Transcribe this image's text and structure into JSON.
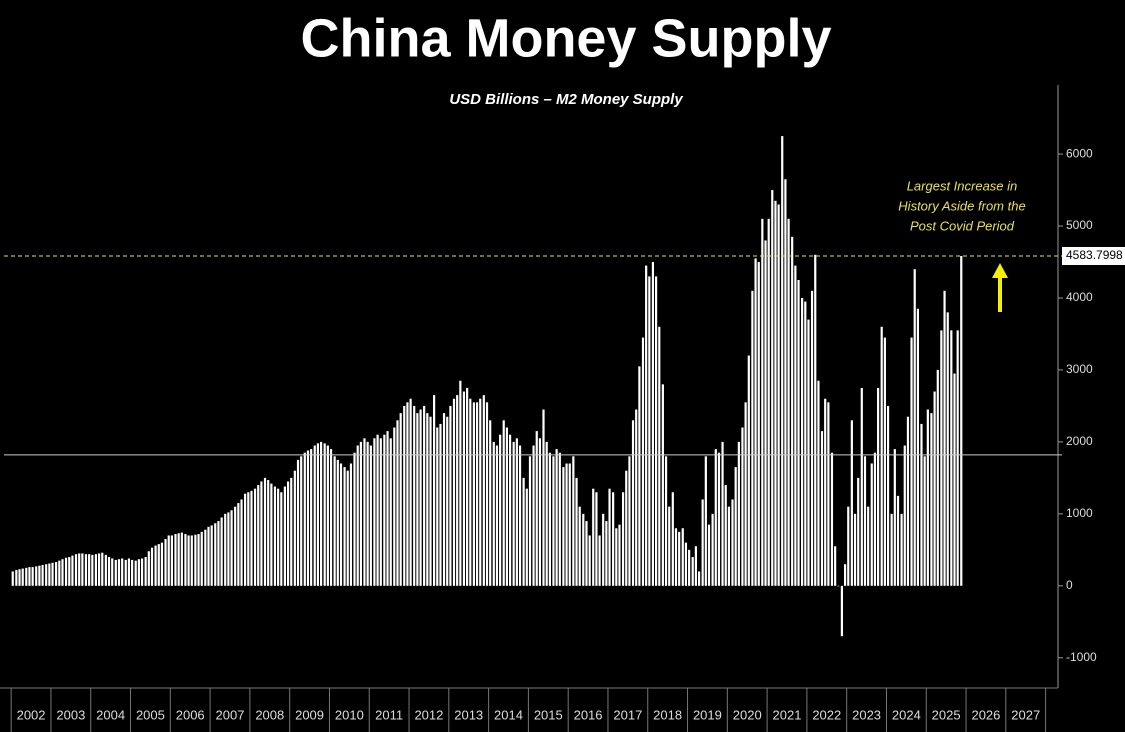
{
  "chart_data": {
    "type": "bar",
    "title": "China Money Supply",
    "subtitle": "USD Billions – M2 Money Supply",
    "annotation": [
      "Largest Increase in",
      "History Aside from the",
      "Post Covid Period"
    ],
    "color": "#ffffff",
    "axis_side": "right",
    "xlim": [
      2001.82,
      2028.06
    ],
    "xticks": [
      {
        "value": 2002.5,
        "label": "2002"
      },
      {
        "value": 2003.5,
        "label": "2003"
      },
      {
        "value": 2004.5,
        "label": "2004"
      },
      {
        "value": 2005.5,
        "label": "2005"
      },
      {
        "value": 2006.5,
        "label": "2006"
      },
      {
        "value": 2007.5,
        "label": "2007"
      },
      {
        "value": 2008.5,
        "label": "2008"
      },
      {
        "value": 2009.5,
        "label": "2009"
      },
      {
        "value": 2010.5,
        "label": "2010"
      },
      {
        "value": 2011.5,
        "label": "2011"
      },
      {
        "value": 2012.5,
        "label": "2012"
      },
      {
        "value": 2013.5,
        "label": "2013"
      },
      {
        "value": 2014.5,
        "label": "2014"
      },
      {
        "value": 2015.5,
        "label": "2015"
      },
      {
        "value": 2016.5,
        "label": "2016"
      },
      {
        "value": 2017.5,
        "label": "2017"
      },
      {
        "value": 2018.5,
        "label": "2018"
      },
      {
        "value": 2019.5,
        "label": "2019"
      },
      {
        "value": 2020.5,
        "label": "2020"
      },
      {
        "value": 2021.5,
        "label": "2021"
      },
      {
        "value": 2022.5,
        "label": "2022"
      },
      {
        "value": 2023.5,
        "label": "2023"
      },
      {
        "value": 2024.5,
        "label": "2024"
      },
      {
        "value": 2025.5,
        "label": "2025"
      },
      {
        "value": 2026.5,
        "label": "2026"
      },
      {
        "value": 2027.5,
        "label": "2027"
      }
    ],
    "ylim": [
      -1420,
      6960
    ],
    "yticks": [
      -1000,
      0,
      1000,
      2000,
      3000,
      4000,
      5000,
      6000
    ],
    "reference_lines": [
      {
        "value": 1820,
        "color": "#cccccc",
        "dashed": false
      },
      {
        "value": 4583.7998,
        "color": "#e8e05a",
        "dashed": true,
        "label": "4583.7998"
      }
    ],
    "x": [
      2002.04,
      2002.13,
      2002.21,
      2002.29,
      2002.38,
      2002.46,
      2002.54,
      2002.63,
      2002.71,
      2002.79,
      2002.88,
      2002.96,
      2003.04,
      2003.13,
      2003.21,
      2003.29,
      2003.38,
      2003.46,
      2003.54,
      2003.63,
      2003.71,
      2003.79,
      2003.88,
      2003.96,
      2004.04,
      2004.13,
      2004.21,
      2004.29,
      2004.38,
      2004.46,
      2004.54,
      2004.63,
      2004.71,
      2004.79,
      2004.88,
      2004.96,
      2005.04,
      2005.13,
      2005.21,
      2005.29,
      2005.38,
      2005.46,
      2005.54,
      2005.63,
      2005.71,
      2005.79,
      2005.88,
      2005.96,
      2006.04,
      2006.13,
      2006.21,
      2006.29,
      2006.38,
      2006.46,
      2006.54,
      2006.63,
      2006.71,
      2006.79,
      2006.88,
      2006.96,
      2007.04,
      2007.13,
      2007.21,
      2007.29,
      2007.38,
      2007.46,
      2007.54,
      2007.63,
      2007.71,
      2007.79,
      2007.88,
      2007.96,
      2008.04,
      2008.13,
      2008.21,
      2008.29,
      2008.38,
      2008.46,
      2008.54,
      2008.63,
      2008.71,
      2008.79,
      2008.88,
      2008.96,
      2009.04,
      2009.13,
      2009.21,
      2009.29,
      2009.38,
      2009.46,
      2009.54,
      2009.63,
      2009.71,
      2009.79,
      2009.88,
      2009.96,
      2010.04,
      2010.13,
      2010.21,
      2010.29,
      2010.38,
      2010.46,
      2010.54,
      2010.63,
      2010.71,
      2010.79,
      2010.88,
      2010.96,
      2011.04,
      2011.13,
      2011.21,
      2011.29,
      2011.38,
      2011.46,
      2011.54,
      2011.63,
      2011.71,
      2011.79,
      2011.88,
      2011.96,
      2012.04,
      2012.13,
      2012.21,
      2012.29,
      2012.38,
      2012.46,
      2012.54,
      2012.63,
      2012.71,
      2012.79,
      2012.88,
      2012.96,
      2013.04,
      2013.13,
      2013.21,
      2013.29,
      2013.38,
      2013.46,
      2013.54,
      2013.63,
      2013.71,
      2013.79,
      2013.88,
      2013.96,
      2014.04,
      2014.13,
      2014.21,
      2014.29,
      2014.38,
      2014.46,
      2014.54,
      2014.63,
      2014.71,
      2014.79,
      2014.88,
      2014.96,
      2015.04,
      2015.13,
      2015.21,
      2015.29,
      2015.38,
      2015.46,
      2015.54,
      2015.63,
      2015.71,
      2015.79,
      2015.88,
      2015.96,
      2016.04,
      2016.13,
      2016.21,
      2016.29,
      2016.38,
      2016.46,
      2016.54,
      2016.63,
      2016.71,
      2016.79,
      2016.88,
      2016.96,
      2017.04,
      2017.13,
      2017.21,
      2017.29,
      2017.38,
      2017.46,
      2017.54,
      2017.63,
      2017.71,
      2017.79,
      2017.88,
      2017.96,
      2018.04,
      2018.13,
      2018.21,
      2018.29,
      2018.38,
      2018.46,
      2018.54,
      2018.63,
      2018.71,
      2018.79,
      2018.88,
      2018.96,
      2019.04,
      2019.13,
      2019.21,
      2019.29,
      2019.38,
      2019.46,
      2019.54,
      2019.63,
      2019.71,
      2019.79,
      2019.88,
      2019.96,
      2020.04,
      2020.13,
      2020.21,
      2020.29,
      2020.38,
      2020.46,
      2020.54,
      2020.63,
      2020.71,
      2020.79,
      2020.88,
      2020.96,
      2021.04,
      2021.13,
      2021.21,
      2021.29,
      2021.38,
      2021.46,
      2021.54,
      2021.63,
      2021.71,
      2021.79,
      2021.88,
      2021.96,
      2022.04,
      2022.13,
      2022.21,
      2022.29,
      2022.38,
      2022.46,
      2022.54,
      2022.63,
      2022.71,
      2022.79,
      2022.88,
      2022.96,
      2023.04,
      2023.13,
      2023.21,
      2023.29,
      2023.38,
      2023.46,
      2023.54,
      2023.63,
      2023.71,
      2023.79,
      2023.88,
      2023.96,
      2024.04,
      2024.13,
      2024.21,
      2024.29,
      2024.38,
      2024.46,
      2024.54,
      2024.63,
      2024.71,
      2024.79,
      2024.88,
      2024.96,
      2025.04,
      2025.13,
      2025.21,
      2025.29,
      2025.38,
      2025.46,
      2025.54,
      2025.63,
      2025.71,
      2025.79,
      2025.88
    ],
    "values": [
      200,
      220,
      230,
      240,
      250,
      260,
      260,
      270,
      280,
      290,
      300,
      310,
      320,
      330,
      350,
      370,
      390,
      400,
      420,
      440,
      450,
      450,
      440,
      440,
      430,
      440,
      450,
      460,
      430,
      400,
      380,
      360,
      370,
      380,
      360,
      380,
      360,
      350,
      370,
      380,
      400,
      480,
      530,
      560,
      580,
      600,
      650,
      700,
      700,
      720,
      730,
      740,
      720,
      700,
      700,
      710,
      720,
      750,
      780,
      820,
      840,
      870,
      900,
      950,
      1000,
      1020,
      1050,
      1100,
      1150,
      1200,
      1280,
      1300,
      1320,
      1350,
      1400,
      1450,
      1500,
      1470,
      1420,
      1380,
      1350,
      1300,
      1380,
      1450,
      1500,
      1600,
      1750,
      1800,
      1850,
      1880,
      1900,
      1950,
      1980,
      2000,
      1980,
      1950,
      1900,
      1800,
      1750,
      1700,
      1650,
      1600,
      1700,
      1850,
      1950,
      2000,
      2050,
      2000,
      1950,
      2050,
      2100,
      2050,
      2100,
      2150,
      2050,
      2200,
      2300,
      2400,
      2500,
      2550,
      2600,
      2500,
      2400,
      2450,
      2500,
      2400,
      2350,
      2650,
      2200,
      2250,
      2400,
      2350,
      2500,
      2600,
      2650,
      2850,
      2700,
      2750,
      2600,
      2550,
      2550,
      2600,
      2650,
      2550,
      2300,
      2000,
      1950,
      2100,
      2300,
      2200,
      2100,
      2000,
      2050,
      1950,
      1500,
      1350,
      1800,
      1950,
      2150,
      2050,
      2450,
      2000,
      1850,
      1800,
      1900,
      1850,
      1650,
      1700,
      1700,
      1800,
      1500,
      1100,
      1000,
      900,
      700,
      1350,
      1300,
      700,
      1000,
      900,
      1350,
      1300,
      800,
      850,
      1300,
      1600,
      1800,
      2300,
      2450,
      3050,
      3450,
      4450,
      4300,
      4500,
      4300,
      3600,
      2800,
      1800,
      1100,
      1300,
      800,
      750,
      800,
      600,
      500,
      400,
      550,
      200,
      1200,
      1800,
      850,
      1000,
      1900,
      1850,
      2000,
      1400,
      1100,
      1200,
      1650,
      2000,
      2200,
      2550,
      3200,
      4100,
      4550,
      4500,
      5100,
      4800,
      5100,
      5500,
      5350,
      5300,
      6250,
      5650,
      5100,
      4850,
      4450,
      4250,
      4000,
      3950,
      3700,
      4100,
      4600,
      2850,
      2150,
      2600,
      2550,
      1850,
      550,
      0,
      -700,
      300,
      1100,
      2300,
      1000,
      1500,
      2750,
      1800,
      1100,
      1700,
      1850,
      2750,
      3600,
      3450,
      2500,
      1000,
      1900,
      1250,
      1000,
      1950,
      2350,
      3450,
      4400,
      3850,
      2250,
      1800,
      2450,
      2400,
      2700,
      3000,
      3550,
      4100,
      3800,
      3550,
      2950,
      3550,
      4583.7998
    ]
  }
}
